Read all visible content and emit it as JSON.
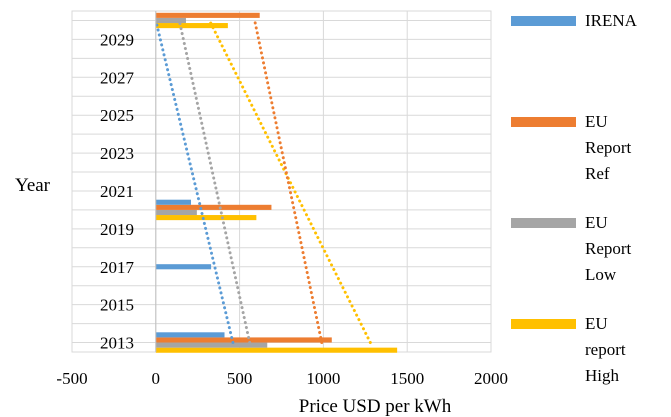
{
  "chart_data": {
    "type": "bar",
    "orientation": "horizontal",
    "title": "",
    "xlabel": "Price USD per kWh",
    "ylabel": "Year",
    "xlim": [
      -500,
      2000
    ],
    "xticks": [
      -500,
      0,
      500,
      1000,
      1500,
      2000
    ],
    "ylim": [
      2012.5,
      2030.5
    ],
    "yticks": [
      2013,
      2015,
      2017,
      2019,
      2021,
      2023,
      2025,
      2027,
      2029
    ],
    "grid": true,
    "legend_position": "right",
    "series": [
      {
        "name": "EU report High",
        "color": "#ffc000",
        "points": [
          {
            "year": 2013,
            "value": 1440
          },
          {
            "year": 2020,
            "value": 600
          },
          {
            "year": 2030,
            "value": 430
          }
        ],
        "trend": [
          [
            2013,
            1280
          ],
          [
            2030,
            320
          ]
        ]
      },
      {
        "name": "EU Report Low",
        "color": "#a5a5a5",
        "points": [
          {
            "year": 2013,
            "value": 665
          },
          {
            "year": 2020,
            "value": 245
          },
          {
            "year": 2030,
            "value": 180
          }
        ],
        "trend": [
          [
            2013,
            560
          ],
          [
            2030,
            140
          ]
        ]
      },
      {
        "name": "EU Report Ref",
        "color": "#ed7d31",
        "points": [
          {
            "year": 2013,
            "value": 1050
          },
          {
            "year": 2020,
            "value": 690
          },
          {
            "year": 2030,
            "value": 620
          }
        ],
        "trend": [
          [
            2013,
            990
          ],
          [
            2030,
            590
          ]
        ]
      },
      {
        "name": "IRENA",
        "color": "#5b9bd5",
        "points": [
          {
            "year": 2013,
            "value": 410
          },
          {
            "year": 2017,
            "value": 330
          },
          {
            "year": 2020,
            "value": 210
          }
        ],
        "trend": [
          [
            2013,
            460
          ],
          [
            2030,
            0
          ]
        ]
      }
    ]
  }
}
